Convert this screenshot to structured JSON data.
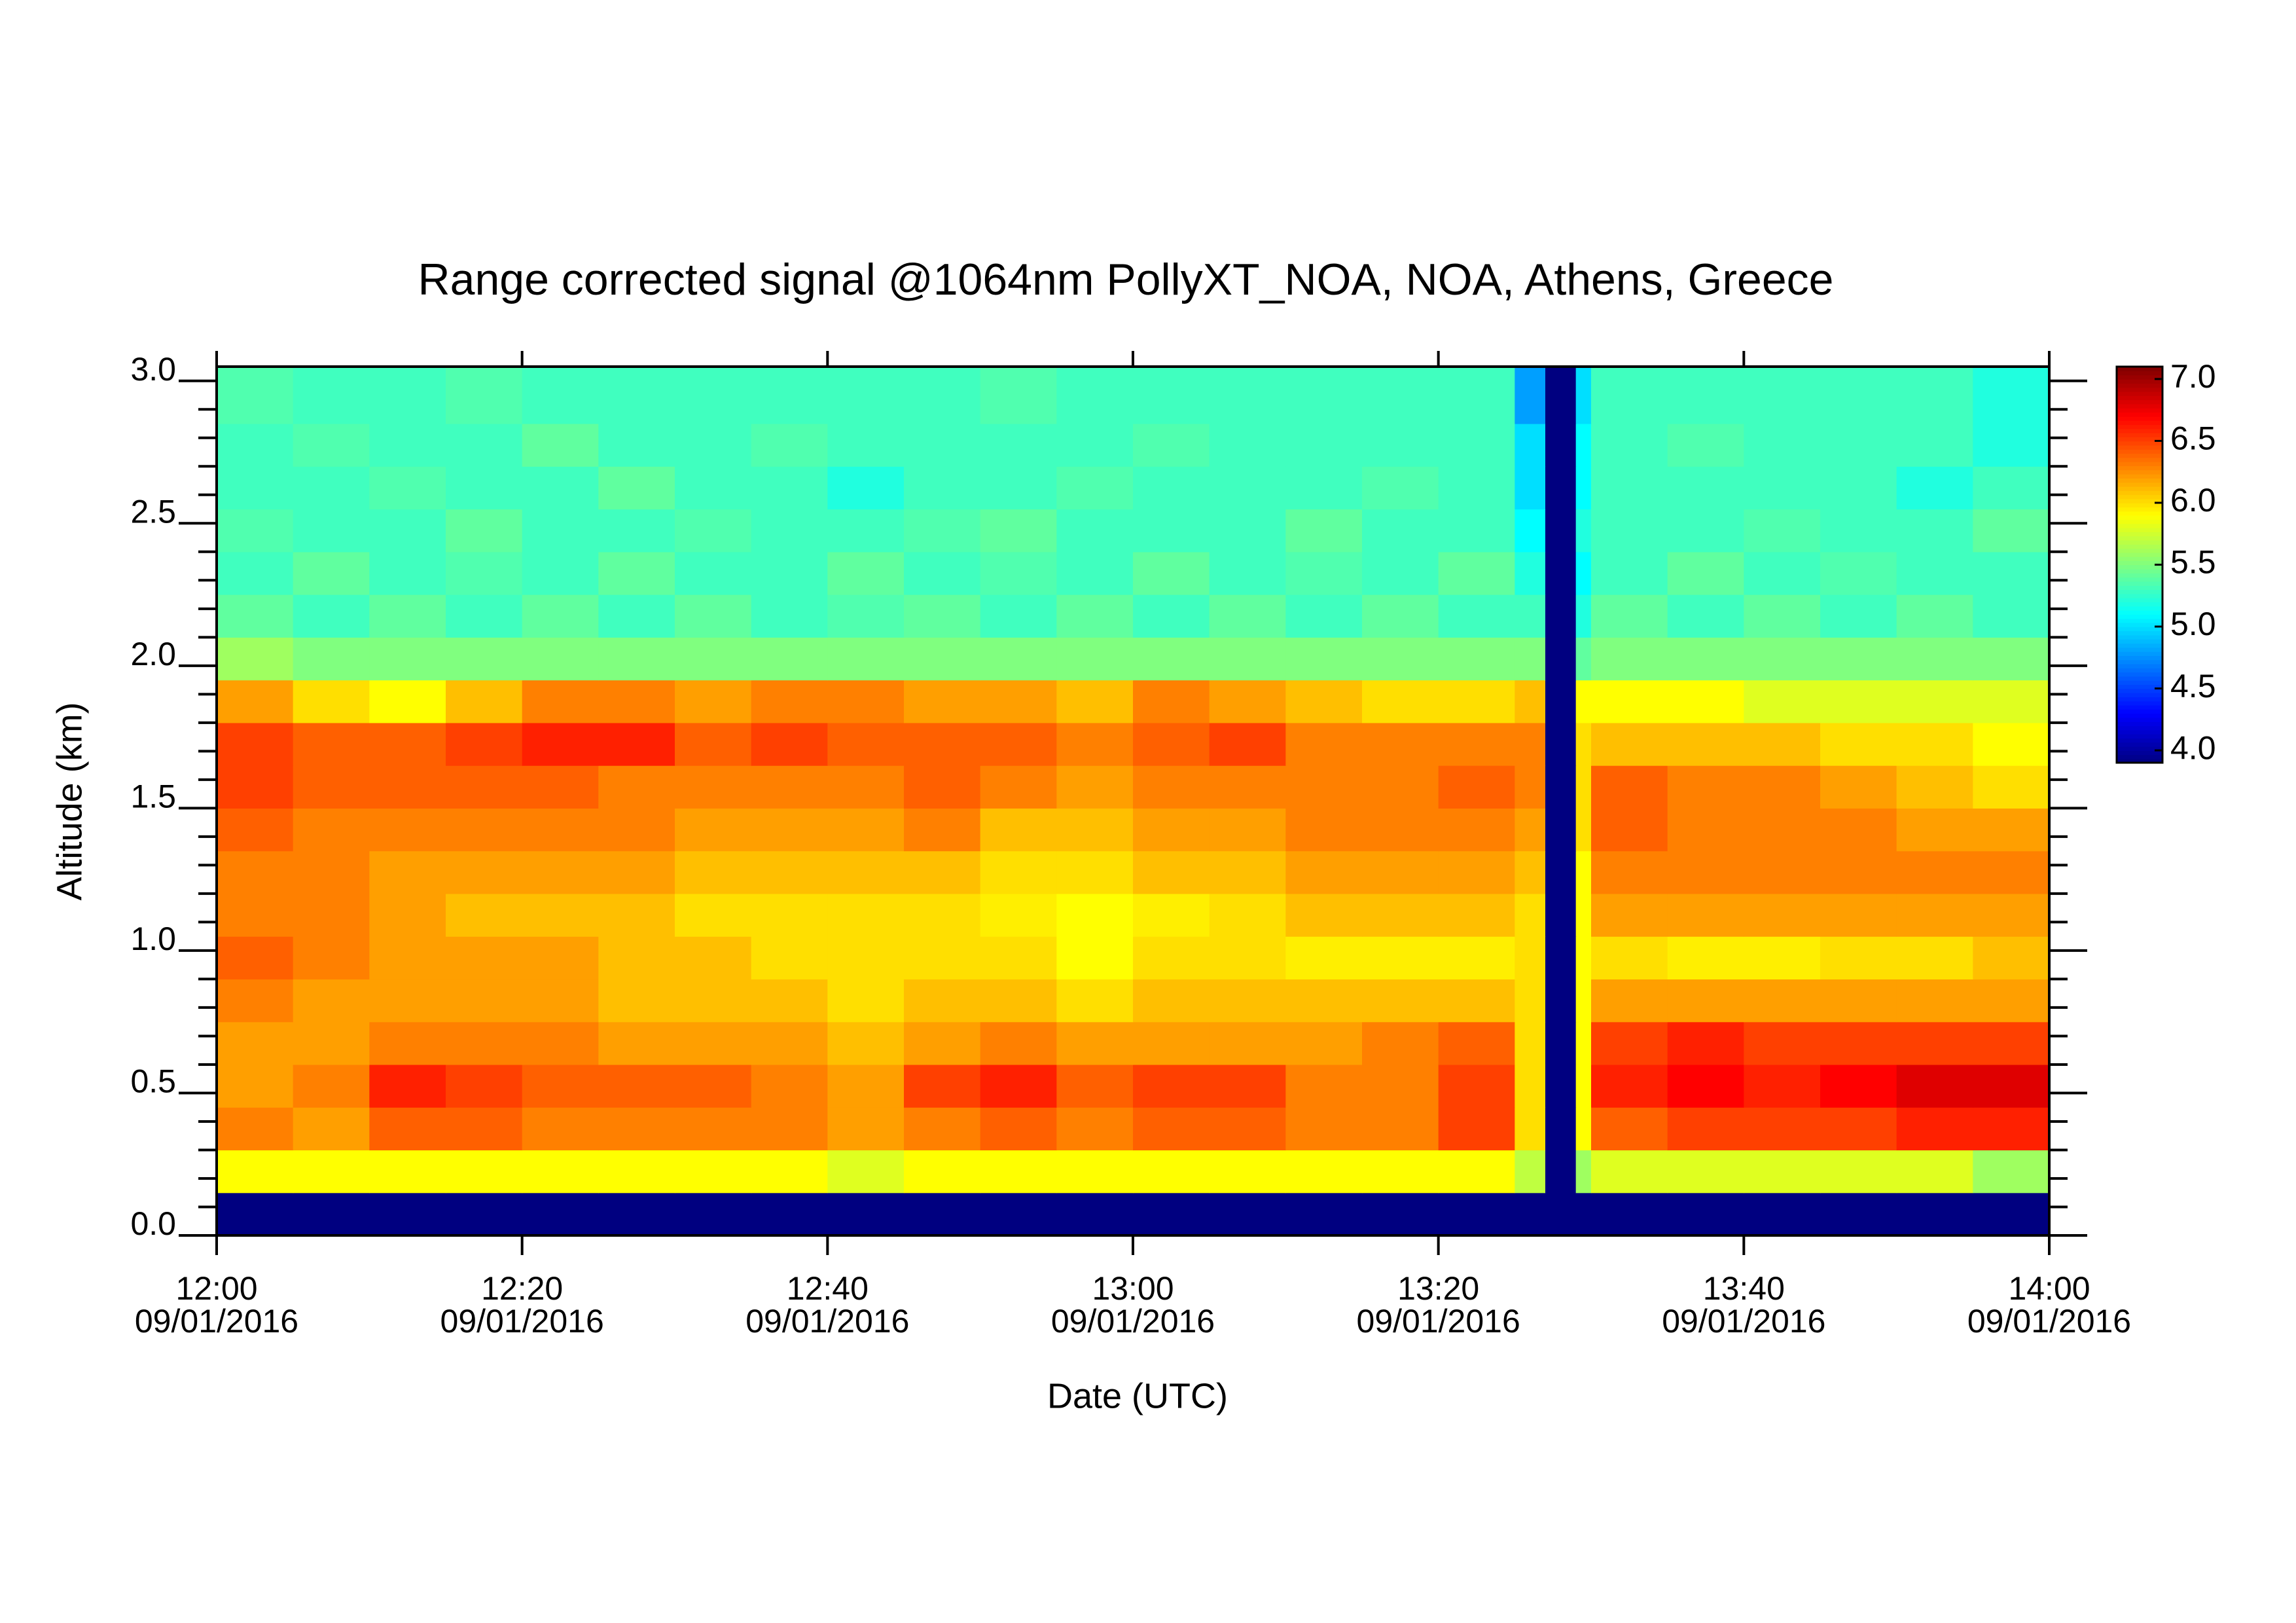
{
  "chart_data": {
    "type": "heatmap",
    "title": "Range corrected signal @1064nm  PollyXT_NOA, NOA, Athens, Greece",
    "x_label": "Date (UTC)",
    "y_label": "Altitude (km)",
    "colormap": "jet",
    "x": [
      "12:00",
      "12:05",
      "12:10",
      "12:15",
      "12:20",
      "12:25",
      "12:30",
      "12:35",
      "12:40",
      "12:45",
      "12:50",
      "12:55",
      "13:00",
      "13:05",
      "13:10",
      "13:15",
      "13:20",
      "13:25",
      "13:27",
      "13:29",
      "13:30",
      "13:35",
      "13:40",
      "13:45",
      "13:50",
      "13:55"
    ],
    "y": [
      0,
      0.15,
      0.3,
      0.45,
      0.6,
      0.75,
      0.9,
      1.05,
      1.2,
      1.35,
      1.5,
      1.65,
      1.8,
      1.95,
      2.1,
      2.25,
      2.4,
      2.55,
      2.7,
      2.85
    ],
    "z": [
      [
        3.9,
        3.9,
        3.9,
        3.9,
        3.9,
        3.9,
        3.9,
        3.9,
        3.9,
        3.9,
        3.9,
        3.9,
        3.9,
        3.9,
        3.9,
        3.9,
        3.9,
        3.9,
        3.9,
        3.9,
        3.9,
        3.9,
        3.9,
        3.9,
        3.9,
        3.9
      ],
      [
        5.9,
        5.9,
        5.9,
        5.9,
        5.9,
        5.9,
        5.9,
        5.9,
        5.8,
        5.9,
        5.9,
        5.9,
        5.9,
        5.9,
        5.9,
        5.9,
        5.9,
        5.7,
        3.9,
        5.6,
        5.8,
        5.8,
        5.8,
        5.8,
        5.8,
        5.6
      ],
      [
        6.3,
        6.2,
        6.4,
        6.4,
        6.3,
        6.3,
        6.3,
        6.3,
        6.2,
        6.3,
        6.4,
        6.3,
        6.4,
        6.4,
        6.3,
        6.3,
        6.5,
        6.0,
        3.9,
        5.9,
        6.4,
        6.5,
        6.5,
        6.5,
        6.6,
        6.6
      ],
      [
        6.2,
        6.3,
        6.6,
        6.5,
        6.4,
        6.4,
        6.4,
        6.3,
        6.2,
        6.5,
        6.6,
        6.4,
        6.5,
        6.5,
        6.3,
        6.3,
        6.5,
        6.0,
        3.9,
        5.9,
        6.6,
        6.7,
        6.6,
        6.7,
        6.8,
        6.8
      ],
      [
        6.2,
        6.2,
        6.3,
        6.3,
        6.3,
        6.2,
        6.2,
        6.2,
        6.1,
        6.2,
        6.3,
        6.2,
        6.2,
        6.2,
        6.2,
        6.3,
        6.4,
        6.0,
        3.9,
        5.9,
        6.5,
        6.6,
        6.5,
        6.5,
        6.5,
        6.5
      ],
      [
        6.3,
        6.2,
        6.2,
        6.2,
        6.2,
        6.1,
        6.1,
        6.1,
        6.0,
        6.1,
        6.1,
        6.0,
        6.1,
        6.1,
        6.1,
        6.1,
        6.1,
        6.0,
        3.9,
        5.9,
        6.2,
        6.2,
        6.2,
        6.2,
        6.2,
        6.2
      ],
      [
        6.4,
        6.3,
        6.2,
        6.2,
        6.2,
        6.1,
        6.1,
        6.0,
        6.0,
        6.0,
        6.0,
        5.9,
        6.0,
        6.0,
        5.95,
        5.95,
        5.95,
        6.0,
        3.9,
        5.9,
        6.0,
        5.95,
        5.95,
        6.0,
        6.0,
        6.1
      ],
      [
        6.3,
        6.3,
        6.2,
        6.1,
        6.1,
        6.1,
        6.0,
        6.0,
        6.0,
        6.0,
        5.95,
        5.9,
        5.95,
        6.0,
        6.1,
        6.1,
        6.1,
        6.0,
        3.9,
        5.9,
        6.2,
        6.2,
        6.2,
        6.2,
        6.2,
        6.2
      ],
      [
        6.3,
        6.3,
        6.2,
        6.2,
        6.2,
        6.2,
        6.1,
        6.1,
        6.1,
        6.1,
        6.0,
        6.0,
        6.1,
        6.1,
        6.2,
        6.2,
        6.2,
        6.1,
        3.9,
        5.9,
        6.3,
        6.3,
        6.3,
        6.3,
        6.3,
        6.3
      ],
      [
        6.4,
        6.3,
        6.3,
        6.3,
        6.3,
        6.3,
        6.2,
        6.2,
        6.2,
        6.3,
        6.1,
        6.1,
        6.2,
        6.2,
        6.3,
        6.3,
        6.3,
        6.2,
        3.9,
        6.0,
        6.4,
        6.3,
        6.3,
        6.3,
        6.2,
        6.2
      ],
      [
        6.5,
        6.4,
        6.4,
        6.4,
        6.4,
        6.3,
        6.3,
        6.3,
        6.3,
        6.4,
        6.3,
        6.2,
        6.3,
        6.3,
        6.3,
        6.3,
        6.4,
        6.3,
        3.9,
        6.0,
        6.4,
        6.3,
        6.3,
        6.2,
        6.1,
        6.0
      ],
      [
        6.5,
        6.4,
        6.4,
        6.5,
        6.6,
        6.6,
        6.4,
        6.5,
        6.4,
        6.4,
        6.4,
        6.3,
        6.4,
        6.5,
        6.3,
        6.3,
        6.3,
        6.3,
        3.9,
        6.0,
        6.1,
        6.1,
        6.1,
        6.0,
        6.0,
        5.9
      ],
      [
        6.2,
        6.0,
        5.9,
        6.1,
        6.3,
        6.3,
        6.2,
        6.3,
        6.3,
        6.2,
        6.2,
        6.1,
        6.3,
        6.2,
        6.1,
        6.0,
        6.0,
        6.1,
        3.9,
        5.9,
        5.9,
        5.9,
        5.8,
        5.8,
        5.8,
        5.8
      ],
      [
        5.6,
        5.5,
        5.5,
        5.5,
        5.5,
        5.5,
        5.5,
        5.5,
        5.5,
        5.5,
        5.5,
        5.5,
        5.5,
        5.5,
        5.5,
        5.5,
        5.5,
        5.5,
        3.9,
        5.4,
        5.5,
        5.5,
        5.5,
        5.5,
        5.5,
        5.5
      ],
      [
        5.4,
        5.3,
        5.4,
        5.3,
        5.4,
        5.3,
        5.4,
        5.3,
        5.35,
        5.4,
        5.3,
        5.4,
        5.3,
        5.4,
        5.3,
        5.4,
        5.3,
        5.3,
        3.9,
        5.2,
        5.4,
        5.3,
        5.4,
        5.3,
        5.4,
        5.3
      ],
      [
        5.3,
        5.4,
        5.3,
        5.35,
        5.3,
        5.4,
        5.3,
        5.3,
        5.4,
        5.3,
        5.35,
        5.3,
        5.4,
        5.3,
        5.35,
        5.3,
        5.4,
        5.2,
        3.9,
        5.1,
        5.3,
        5.4,
        5.3,
        5.35,
        5.3,
        5.3
      ],
      [
        5.35,
        5.3,
        5.3,
        5.4,
        5.3,
        5.3,
        5.35,
        5.3,
        5.3,
        5.35,
        5.4,
        5.3,
        5.3,
        5.3,
        5.4,
        5.3,
        5.3,
        5.1,
        3.9,
        5.2,
        5.3,
        5.3,
        5.35,
        5.3,
        5.3,
        5.4
      ],
      [
        5.3,
        5.3,
        5.35,
        5.3,
        5.3,
        5.4,
        5.3,
        5.3,
        5.2,
        5.3,
        5.3,
        5.35,
        5.3,
        5.3,
        5.3,
        5.35,
        5.3,
        5.0,
        3.9,
        5.1,
        5.3,
        5.3,
        5.3,
        5.3,
        5.2,
        5.3
      ],
      [
        5.3,
        5.35,
        5.3,
        5.3,
        5.4,
        5.3,
        5.3,
        5.35,
        5.3,
        5.3,
        5.3,
        5.3,
        5.35,
        5.3,
        5.3,
        5.3,
        5.3,
        5.0,
        3.9,
        5.1,
        5.3,
        5.35,
        5.3,
        5.3,
        5.3,
        5.2
      ],
      [
        5.35,
        5.3,
        5.3,
        5.35,
        5.3,
        5.3,
        5.3,
        5.3,
        5.3,
        5.3,
        5.35,
        5.3,
        5.3,
        5.3,
        5.3,
        5.3,
        5.3,
        4.8,
        3.9,
        5.0,
        5.3,
        5.3,
        5.3,
        5.3,
        5.3,
        5.2
      ]
    ],
    "xlim": [
      "12:00",
      "14:00"
    ],
    "xticks": [
      {
        "value": "12:00",
        "label": [
          "12:00",
          "09/01/2016"
        ]
      },
      {
        "value": "12:20",
        "label": [
          "12:20",
          "09/01/2016"
        ]
      },
      {
        "value": "12:40",
        "label": [
          "12:40",
          "09/01/2016"
        ]
      },
      {
        "value": "13:00",
        "label": [
          "13:00",
          "09/01/2016"
        ]
      },
      {
        "value": "13:20",
        "label": [
          "13:20",
          "09/01/2016"
        ]
      },
      {
        "value": "13:40",
        "label": [
          "13:40",
          "09/01/2016"
        ]
      },
      {
        "value": "14:00",
        "label": [
          "14:00",
          "09/01/2016"
        ]
      }
    ],
    "ylim": [
      0,
      3.05
    ],
    "yticks": [
      {
        "value": 0,
        "label": "0.0"
      },
      0.5,
      {
        "value": 1,
        "label": "1.0"
      },
      1.5,
      {
        "value": 2,
        "label": "2.0"
      },
      2.5,
      {
        "value": 3,
        "label": "3.0"
      }
    ],
    "yminorticks": [
      0.1,
      0.2,
      0.3,
      0.4,
      0.6,
      0.7,
      0.8,
      0.9,
      1.1,
      1.2,
      1.3,
      1.4,
      1.6,
      1.7,
      1.8,
      1.9,
      2.1,
      2.2,
      2.3,
      2.4,
      2.6,
      2.7,
      2.8,
      2.9
    ],
    "zlim": [
      3.9,
      7.1
    ],
    "zticks": [
      {
        "value": 4,
        "label": "4.0"
      },
      4.5,
      {
        "value": 5,
        "label": "5.0"
      },
      5.5,
      {
        "value": 6,
        "label": "6.0"
      },
      6.5,
      {
        "value": 7,
        "label": "7.0"
      }
    ]
  }
}
